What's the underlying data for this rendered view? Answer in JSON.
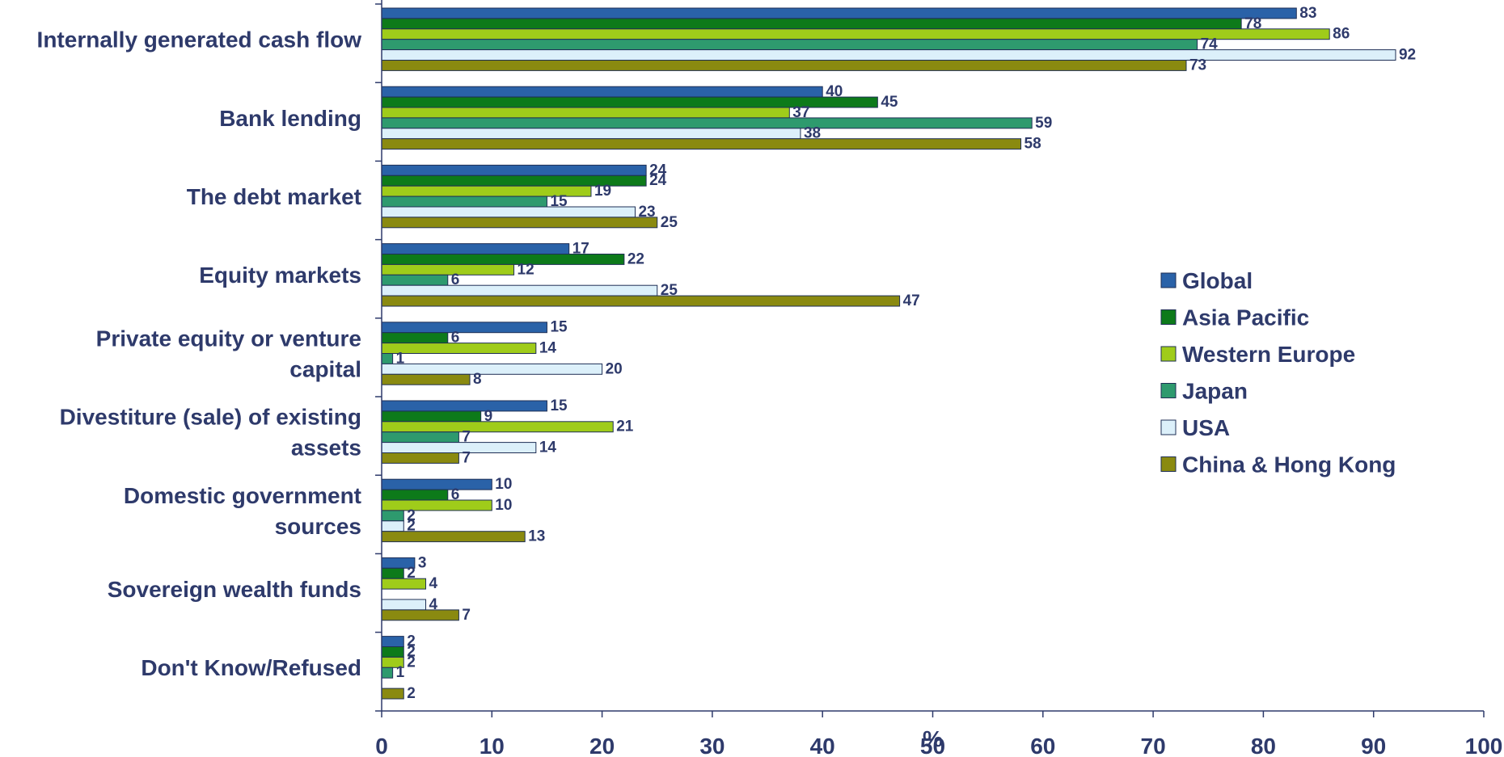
{
  "chart_data": {
    "type": "bar",
    "orientation": "horizontal",
    "categories": [
      "Internally generated cash flow",
      "Bank lending",
      "The debt market",
      "Equity markets",
      "Private equity or venture capital",
      "Divestiture (sale) of existing assets",
      "Domestic government sources",
      "Sovereign wealth funds",
      "Don't Know/Refused"
    ],
    "category_label_lines": [
      [
        "Internally generated cash flow"
      ],
      [
        "Bank lending"
      ],
      [
        "The debt market"
      ],
      [
        "Equity markets"
      ],
      [
        "Private equity or venture",
        "capital"
      ],
      [
        "Divestiture (sale) of existing",
        "assets"
      ],
      [
        "Domestic government",
        "sources"
      ],
      [
        "Sovereign wealth funds"
      ],
      [
        "Don't Know/Refused"
      ]
    ],
    "series": [
      {
        "name": "Global",
        "color": "#2a62a8",
        "values": [
          83,
          40,
          24,
          17,
          15,
          15,
          10,
          3,
          2
        ]
      },
      {
        "name": "Asia Pacific",
        "color": "#0d7a1a",
        "values": [
          78,
          45,
          24,
          22,
          6,
          9,
          6,
          2,
          2
        ]
      },
      {
        "name": "Western Europe",
        "color": "#9fcc1a",
        "values": [
          86,
          37,
          19,
          12,
          14,
          21,
          10,
          4,
          2
        ]
      },
      {
        "name": "Japan",
        "color": "#2e9a6e",
        "values": [
          74,
          59,
          15,
          6,
          1,
          7,
          2,
          null,
          1
        ]
      },
      {
        "name": "USA",
        "color": "#dcf0fa",
        "values": [
          92,
          38,
          23,
          25,
          20,
          14,
          2,
          4,
          null
        ]
      },
      {
        "name": "China & Hong Kong",
        "color": "#8a8a10",
        "values": [
          73,
          58,
          25,
          47,
          8,
          7,
          13,
          7,
          2
        ]
      }
    ],
    "xlim": [
      0,
      100
    ],
    "x_ticks": [
      0,
      10,
      20,
      30,
      40,
      50,
      60,
      70,
      80,
      90,
      100
    ],
    "xlabel": "%",
    "legend_position": "right",
    "grid": false
  }
}
